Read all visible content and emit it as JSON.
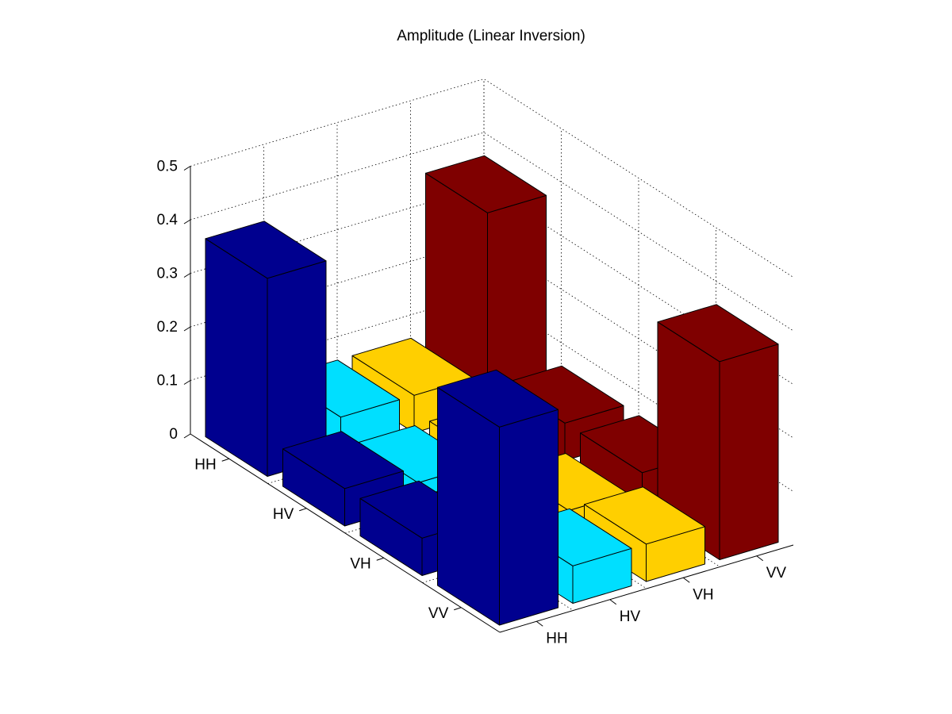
{
  "chart_data": {
    "type": "bar3",
    "title": "Amplitude (Linear Inversion)",
    "row_labels": [
      "HH",
      "HV",
      "VH",
      "VV"
    ],
    "col_labels": [
      "HH",
      "HV",
      "VH",
      "VV"
    ],
    "zlim": [
      0,
      0.5
    ],
    "z_ticks": [
      "0",
      "0.1",
      "0.2",
      "0.3",
      "0.4",
      "0.5"
    ],
    "grid": true,
    "colors": [
      "#00008F",
      "#00DFFF",
      "#FFCF00",
      "#7F0000"
    ],
    "values": [
      [
        0.37,
        0.07,
        0.07,
        0.37
      ],
      [
        0.07,
        0.04,
        0.04,
        0.07
      ],
      [
        0.07,
        0.04,
        0.04,
        0.07
      ],
      [
        0.37,
        0.07,
        0.07,
        0.37
      ]
    ]
  }
}
